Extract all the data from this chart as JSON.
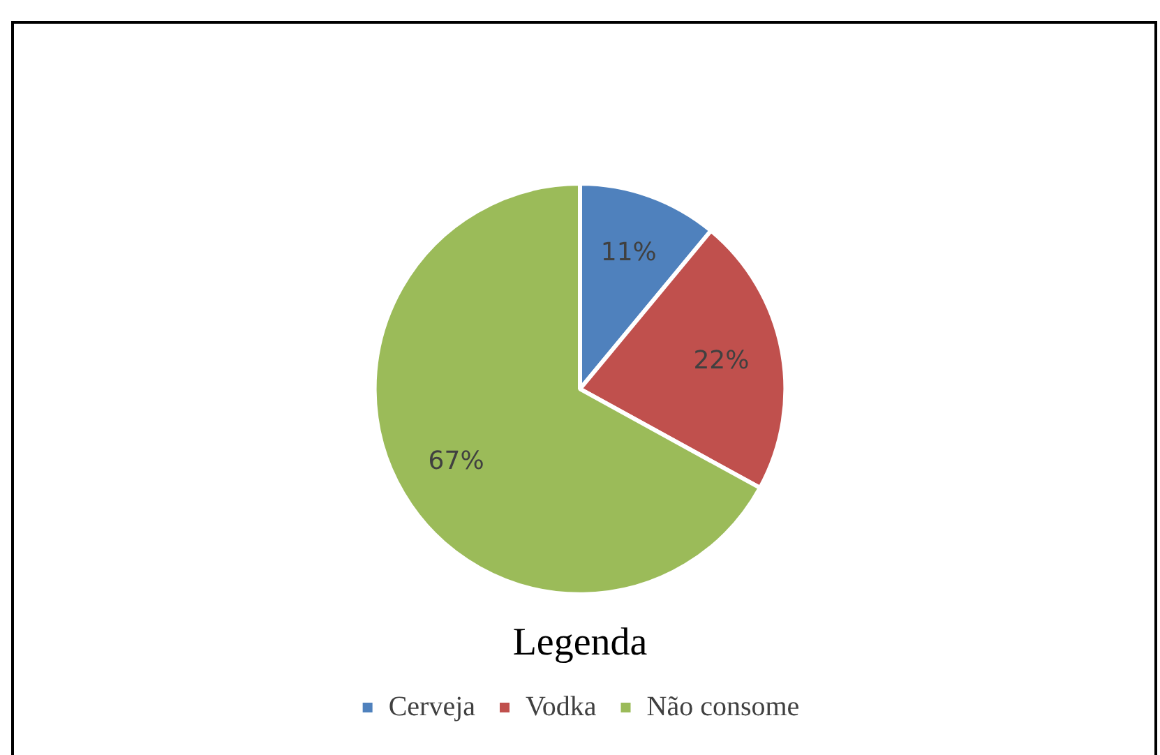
{
  "chart_data": {
    "type": "pie",
    "legend_title": "Legenda",
    "categories": [
      "Cerveja",
      "Vodka",
      "Não consome"
    ],
    "values": [
      11,
      22,
      67
    ],
    "colors": [
      "#4f81bd",
      "#c0504d",
      "#9bbb59"
    ],
    "value_labels": [
      "11%",
      "22%",
      "67%"
    ],
    "legend": "bottom"
  }
}
